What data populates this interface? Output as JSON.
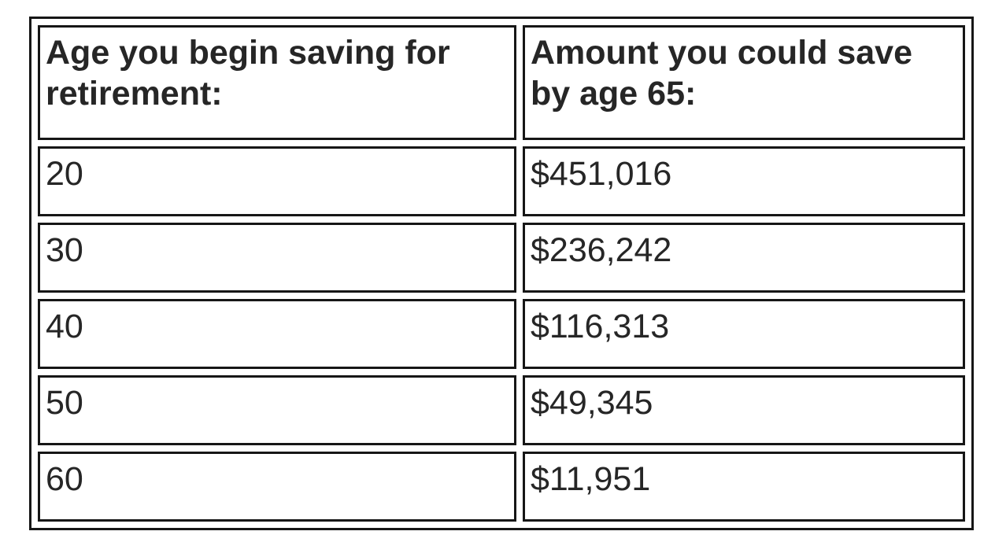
{
  "table": {
    "columns": [
      {
        "header": "Age you begin saving for retirement:"
      },
      {
        "header": "Amount you could save by age 65:"
      }
    ],
    "rows": [
      {
        "age": "20",
        "amount": "$451,016"
      },
      {
        "age": "30",
        "amount": "$236,242"
      },
      {
        "age": "40",
        "amount": "$116,313"
      },
      {
        "age": "50",
        "amount": "$49,345"
      },
      {
        "age": "60",
        "amount": "$11,951"
      }
    ]
  },
  "colors": {
    "text": "#262626",
    "border": "#161616",
    "background": "#ffffff"
  }
}
